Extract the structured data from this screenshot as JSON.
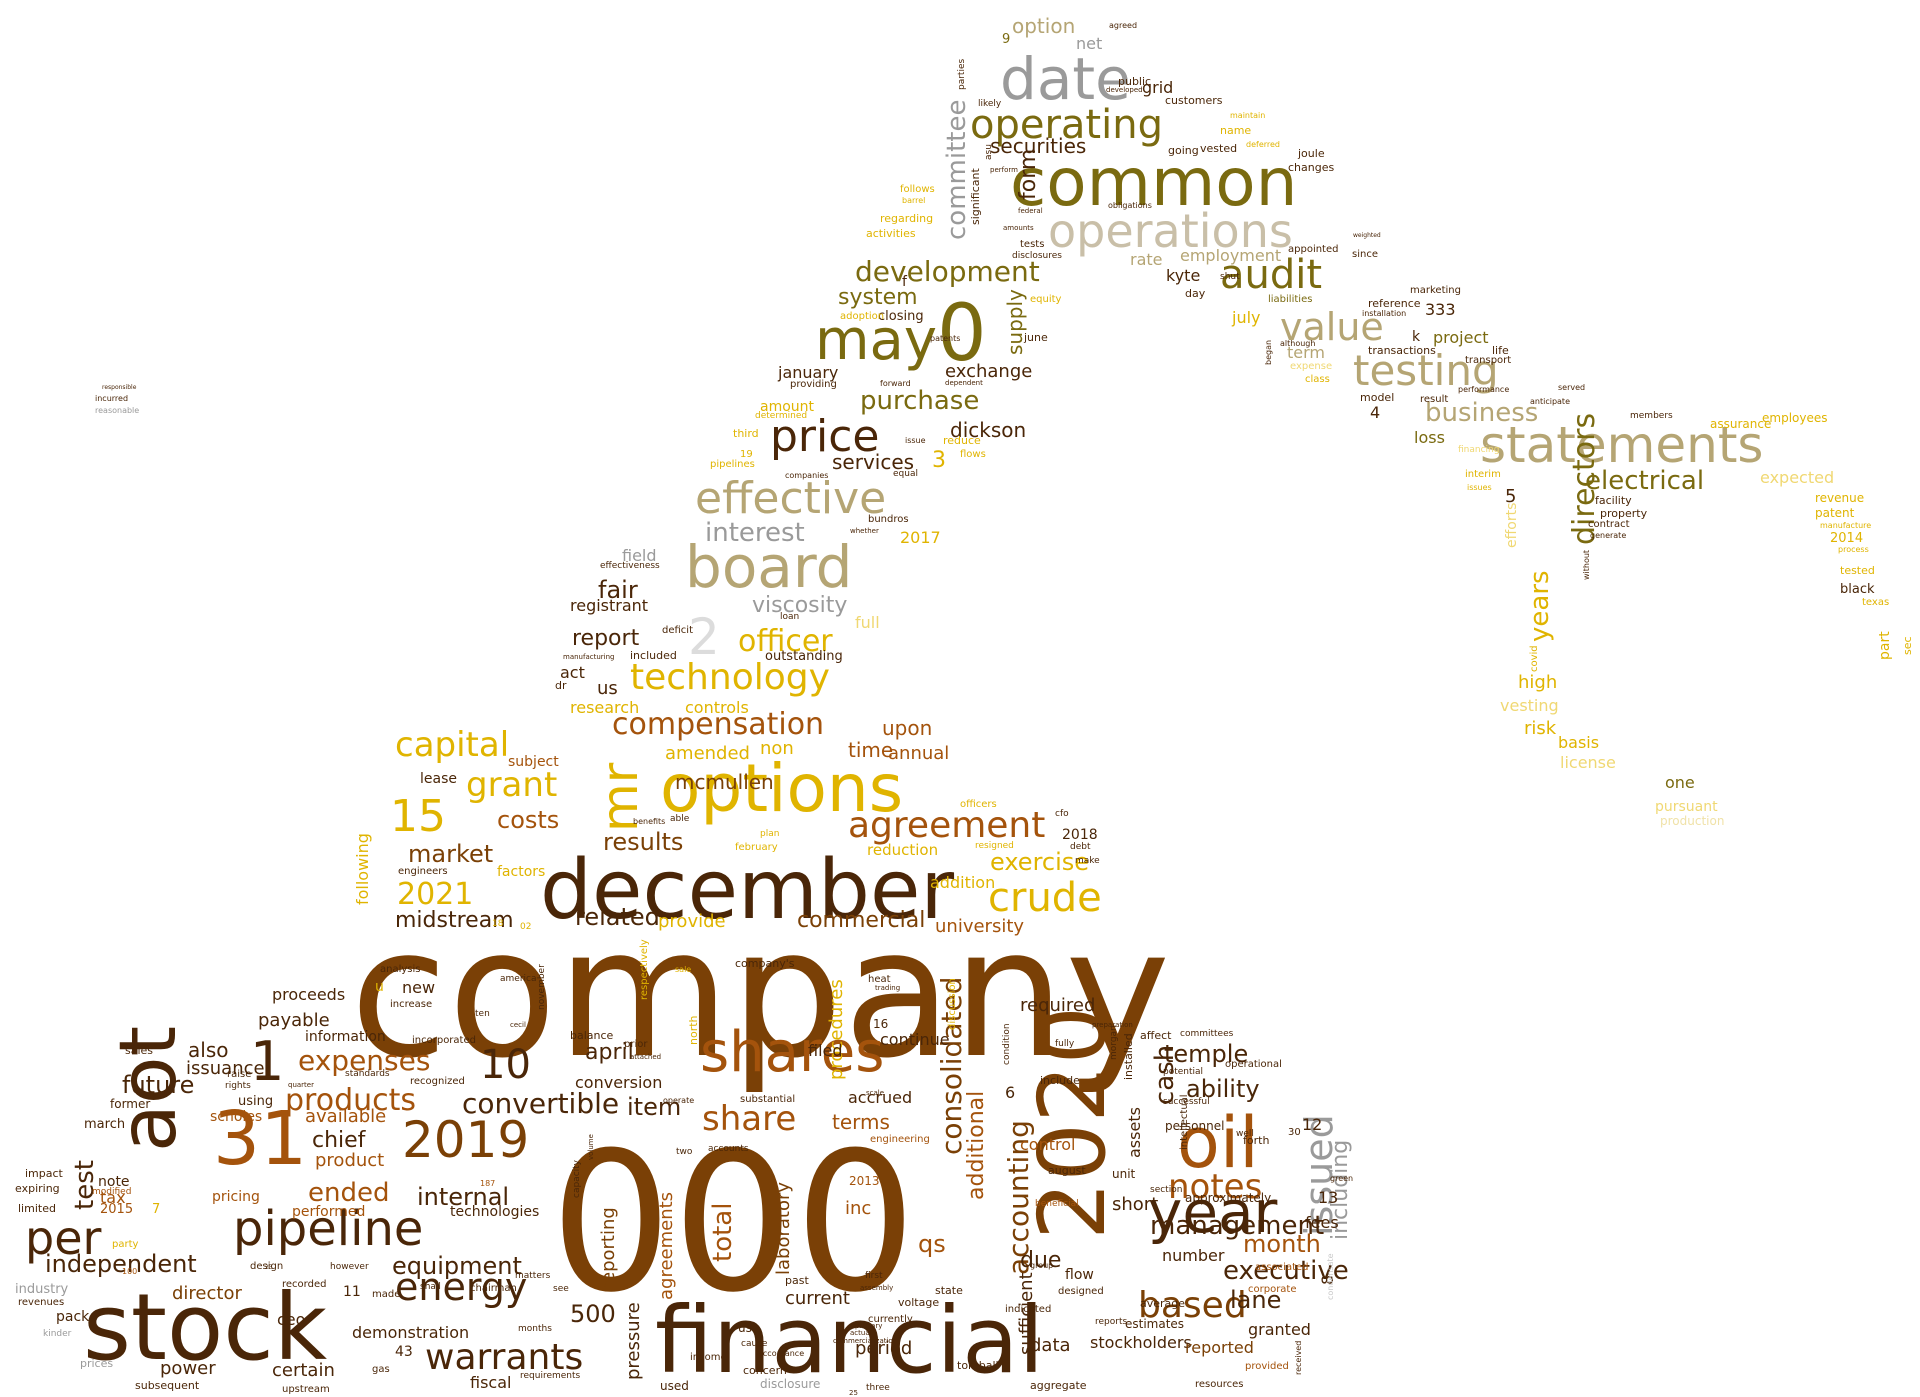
{
  "palette": {
    "dark_brown": "#4a2608",
    "brown": "#7a4006",
    "orange_brown": "#a4530c",
    "olive": "#7a6a10",
    "khaki": "#b5a574",
    "gold": "#e0b400",
    "light_gold": "#f0d873",
    "grey": "#9a9a9a",
    "black": "#231a0e"
  },
  "words": {
    "company": "company",
    "n000": "000",
    "financial": "financial",
    "stock": "stock",
    "december": "december",
    "options": "options",
    "common": "common",
    "board": "board",
    "n2020": "2020",
    "aot": "aot",
    "n31": "31",
    "oil": "oil",
    "statements": "statements",
    "year": "year",
    "pipeline": "pipeline",
    "may": "may",
    "n0": "0",
    "date": "date",
    "shares": "shares",
    "operations": "operations",
    "effective": "effective",
    "price": "price",
    "n2019": "2019",
    "technology": "technology",
    "energy": "energy",
    "per": "per",
    "testing": "testing",
    "audit": "audit",
    "value": "value",
    "operating": "operating",
    "crude": "crude",
    "capital": "capital",
    "warrants": "warrants",
    "agreement": "agreement",
    "notes": "notes",
    "issued": "issued",
    "based": "based",
    "n15": "15",
    "n10": "10",
    "n1": "1",
    "mr": "mr",
    "share": "share",
    "n2021": "2021",
    "grant": "grant",
    "products": "products",
    "expenses": "expenses",
    "management": "management",
    "compensation": "compensation",
    "development": "development",
    "officer": "officer",
    "interest": "interest",
    "purchase": "purchase",
    "directors": "directors",
    "business": "business",
    "electrical": "electrical",
    "years": "years",
    "executive": "executive",
    "convertible": "convertible",
    "consolidated": "consolidated",
    "accounting": "accounting",
    "n2": "2",
    "committee": "committee",
    "securities": "securities",
    "equipment": "equipment",
    "independent": "independent",
    "internal": "internal",
    "ended": "ended",
    "month": "month",
    "future": "future",
    "cash": "cash",
    "total": "total",
    "test": "test",
    "ability": "ability",
    "temple": "temple",
    "lane": "lane",
    "n500": "500",
    "qs": "qs",
    "results": "results",
    "market": "market",
    "costs": "costs",
    "fair": "fair",
    "report": "report",
    "viscosity": "viscosity",
    "system": "system",
    "exchange": "exchange",
    "dickson": "dickson",
    "services": "services",
    "form": "form",
    "supply": "supply",
    "mcmullen": "mcmullen",
    "exercise": "exercise",
    "commercial": "commercial",
    "midstream": "midstream",
    "related": "related",
    "chief": "chief",
    "available": "available",
    "product": "product",
    "april": "april",
    "item": "item",
    "terms": "terms",
    "including": "including",
    "additional": "additional",
    "due": "due",
    "data": "data",
    "stockholders": "stockholders",
    "reported": "reported",
    "granted": "granted",
    "period": "period",
    "current": "current",
    "pressure": "pressure",
    "reporting": "reporting",
    "agreements": "agreements",
    "laboratory": "laboratory",
    "inc": "inc",
    "fiscal": "fiscal",
    "certain": "certain",
    "power": "power",
    "ceo": "ceo",
    "director": "director",
    "demonstration": "demonstration",
    "upon": "upon",
    "time": "time",
    "annual": "annual",
    "amended": "amended",
    "non": "non",
    "provide": "provide",
    "university": "university",
    "addition": "addition",
    "reduction": "reduction",
    "procedures": "procedures",
    "also": "also",
    "issuance": "issuance",
    "payable": "payable",
    "proceeds": "proceeds",
    "required": "required",
    "continue": "continue",
    "filed": "filed",
    "accrued": "accrued",
    "conversion": "conversion",
    "sufficient": "sufficient",
    "control": "control",
    "assets": "assets",
    "short": "short",
    "number": "number",
    "fees": "fees",
    "n13": "13",
    "n12": "12",
    "n8": "8",
    "n6": "6",
    "n3": "3",
    "n4": "4",
    "n5": "5",
    "n333": "333",
    "n2017": "2017",
    "n2018": "2018",
    "n2014": "2014",
    "n2015": "2015",
    "n2013": "2013",
    "n11": "11",
    "n43": "43",
    "n16": "16",
    "n9": "9",
    "n7": "7",
    "risk": "risk",
    "high": "high",
    "vesting": "vesting",
    "basis": "basis",
    "license": "license",
    "one": "one",
    "pursuant": "pursuant",
    "production": "production",
    "expected": "expected",
    "revenue": "revenue",
    "patent": "patent",
    "tested": "tested",
    "black": "black",
    "texas": "texas",
    "part": "part",
    "sec": "sec",
    "assurance": "assurance",
    "employees": "employees",
    "process": "process",
    "manufacture": "manufacture",
    "efforts": "efforts",
    "covid": "covid",
    "facility": "facility",
    "property": "property",
    "contract": "contract",
    "generate": "generate",
    "without": "without",
    "loss": "loss",
    "project": "project",
    "life": "life",
    "k": "k",
    "transport": "transport",
    "performance": "performance",
    "financing": "financing",
    "interim": "interim",
    "issues": "issues",
    "model": "model",
    "result": "result",
    "members": "members",
    "anticipate": "anticipate",
    "served": "served",
    "transactions": "transactions",
    "reference": "reference",
    "installation": "installation",
    "marketing": "marketing",
    "although": "although",
    "began": "began",
    "term": "term",
    "expense": "expense",
    "class": "class",
    "july": "july",
    "employment": "employment",
    "rate": "rate",
    "kyte": "kyte",
    "day": "day",
    "shut": "shut",
    "liabilities": "liabilities",
    "appointed": "appointed",
    "since": "since",
    "joule": "joule",
    "changes": "changes",
    "weighted": "weighted",
    "grid": "grid",
    "customers": "customers",
    "public": "public",
    "developed": "developed",
    "option": "option",
    "net": "net",
    "agreed": "agreed",
    "name": "name",
    "maintain": "maintain",
    "vested": "vested",
    "deferred": "deferred",
    "going": "going",
    "obligations": "obligations",
    "federal": "federal",
    "tests": "tests",
    "disclosures": "disclosures",
    "amounts": "amounts",
    "significant": "significant",
    "parties": "parties",
    "likely": "likely",
    "asu": "asu",
    "perform": "perform",
    "f": "f",
    "closing": "closing",
    "equity": "equity",
    "june": "june",
    "follows": "follows",
    "barrel": "barrel",
    "regarding": "regarding",
    "activities": "activities",
    "adoption": "adoption",
    "patents": "patents",
    "dependent": "dependent",
    "forward": "forward",
    "providing": "providing",
    "january": "january",
    "amount": "amount",
    "determined": "determined",
    "third": "third",
    "pipelines": "pipelines",
    "companies": "companies",
    "reduce": "reduce",
    "flows": "flows",
    "equal": "equal",
    "issue": "issue",
    "bundros": "bundros",
    "whether": "whether",
    "field": "field",
    "effectiveness": "effectiveness",
    "registrant": "registrant",
    "full": "full",
    "loan": "loan",
    "outstanding": "outstanding",
    "deficit": "deficit",
    "included": "included",
    "manufacturing": "manufacturing",
    "dr": "dr",
    "act": "act",
    "research": "research",
    "controls": "controls",
    "us": "us",
    "lease": "lease",
    "subject": "subject",
    "following": "following",
    "factors": "factors",
    "engineers": "engineers",
    "officers": "officers",
    "resigned": "resigned",
    "february": "february",
    "plan": "plan",
    "benefits": "benefits",
    "able": "able",
    "cfo": "cfo",
    "debt": "debt",
    "make": "make",
    "analysis": "analysis",
    "u": "u",
    "new": "new",
    "increase": "increase",
    "america": "america",
    "november": "november",
    "respectively": "respectively",
    "north": "north",
    "sale": "sale",
    "companys": "company's",
    "heat": "heat",
    "trading": "trading",
    "discussion": "discussion",
    "ten": "ten",
    "cecil": "cecil",
    "recognized": "recognized",
    "incorporated": "incorporated",
    "standards": "standards",
    "balance": "balance",
    "prior": "prior",
    "attached": "attached",
    "tax": "tax",
    "pricing": "pricing",
    "performed": "performed",
    "technologies": "technologies",
    "sales": "sales",
    "raise": "raise",
    "rights": "rights",
    "quarter": "quarter",
    "scholes": "scholes",
    "using": "using",
    "information": "information",
    "former": "former",
    "march": "march",
    "impact": "impact",
    "expiring": "expiring",
    "limited": "limited",
    "industry": "industry",
    "pack": "pack",
    "revenues": "revenues",
    "kinder": "kinder",
    "prices": "prices",
    "subsequent": "subsequent",
    "modified": "modified",
    "note": "note",
    "design": "design",
    "however": "however",
    "chairman": "chairman",
    "matters": "matters",
    "made": "made",
    "shall": "shall",
    "see": "see",
    "months": "months",
    "recorded": "recorded",
    "upstream": "upstream",
    "gas": "gas",
    "requirements": "requirements",
    "income": "income",
    "used": "used",
    "concern": "concern",
    "disclosure": "disclosure",
    "three": "three",
    "cause": "cause",
    "past": "past",
    "first": "first",
    "assembly": "assembly",
    "voltage": "voltage",
    "state": "state",
    "tomball": "tomball",
    "aggregate": "aggregate",
    "resources": "resources",
    "provided": "provided",
    "received": "received",
    "corporate": "corporate",
    "associated": "associated",
    "forth": "forth",
    "average": "average",
    "estimates": "estimates",
    "reports": "reports",
    "indicated": "indicated",
    "designed": "designed",
    "flow": "flow",
    "group": "group",
    "beneficial": "beneficial",
    "august": "august",
    "unit": "unit",
    "section": "section",
    "approximately": "approximately",
    "well": "well",
    "personnel": "personnel",
    "potential": "potential",
    "operational": "operational",
    "successful": "successful",
    "installed": "installed",
    "intellectual": "intellectual",
    "affect": "affect",
    "committees": "committees",
    "fully": "fully",
    "include": "include",
    "condition": "condition",
    "preparation": "preparation",
    "morgan": "morgan",
    "green": "green",
    "condensate": "condensate",
    "responsible": "responsible",
    "incurred": "incurred",
    "reasonable": "reasonable",
    "accounts": "accounts",
    "capacity": "capacity",
    "volume": "volume",
    "engineering": "engineering",
    "scale": "scale",
    "substantial": "substantial",
    "operate": "operate",
    "two": "two",
    "accordance": "accordance",
    "currently": "currently",
    "use": "use",
    "commercialization": "commercialization",
    "actual": "actual",
    "primary": "primary",
    "party": "party",
    "n100": "100",
    "n187": "187",
    "n25": "25",
    "n30": "30",
    "n02": "02",
    "n18": "18",
    "n19": "19",
    "n23": "23"
  }
}
